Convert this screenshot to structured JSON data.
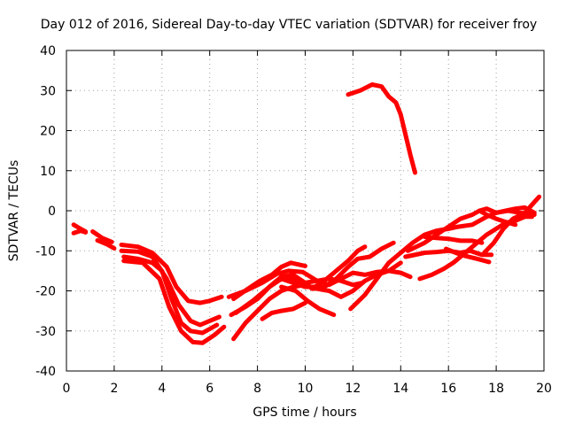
{
  "chart_data": {
    "type": "line",
    "title": "Day 012 of 2016, Sidereal Day-to-day VTEC variation (SDTVAR) for receiver froy",
    "xlabel": "GPS time / hours",
    "ylabel": "SDTVAR / TECUs",
    "xlim": [
      0,
      20
    ],
    "ylim": [
      -40,
      40
    ],
    "xticks": [
      0,
      2,
      4,
      6,
      8,
      10,
      12,
      14,
      16,
      18,
      20
    ],
    "yticks": [
      -40,
      -30,
      -20,
      -10,
      0,
      10,
      20,
      30,
      40
    ],
    "grid": true,
    "color": "#ff0000",
    "series": [
      {
        "name": "arc-1",
        "points": [
          [
            0.3,
            -3.5
          ],
          [
            0.5,
            -4.2
          ],
          [
            0.8,
            -5.2
          ]
        ]
      },
      {
        "name": "arc-2",
        "points": [
          [
            0.3,
            -5.6
          ],
          [
            0.6,
            -5.0
          ],
          [
            0.8,
            -5.4
          ]
        ]
      },
      {
        "name": "arc-3",
        "points": [
          [
            1.1,
            -5.2
          ],
          [
            1.5,
            -6.8
          ],
          [
            1.9,
            -7.8
          ]
        ]
      },
      {
        "name": "arc-4",
        "points": [
          [
            1.3,
            -7.4
          ],
          [
            1.7,
            -8.4
          ],
          [
            2.0,
            -9.4
          ]
        ]
      },
      {
        "name": "arc-5",
        "points": [
          [
            2.3,
            -8.5
          ],
          [
            3.0,
            -9.0
          ],
          [
            3.6,
            -10.5
          ],
          [
            4.2,
            -14.0
          ],
          [
            4.6,
            -19.0
          ],
          [
            5.1,
            -22.5
          ],
          [
            5.6,
            -23.0
          ],
          [
            6.0,
            -22.5
          ],
          [
            6.5,
            -21.5
          ]
        ]
      },
      {
        "name": "arc-6",
        "points": [
          [
            2.3,
            -10.0
          ],
          [
            3.0,
            -10.2
          ],
          [
            3.6,
            -11.5
          ],
          [
            4.2,
            -17.0
          ],
          [
            4.7,
            -23.5
          ],
          [
            5.2,
            -27.5
          ],
          [
            5.6,
            -28.5
          ],
          [
            6.0,
            -27.5
          ],
          [
            6.4,
            -26.5
          ]
        ]
      },
      {
        "name": "arc-7",
        "points": [
          [
            2.4,
            -11.5
          ],
          [
            3.0,
            -12.0
          ],
          [
            3.6,
            -13.0
          ],
          [
            4.0,
            -15.0
          ],
          [
            4.4,
            -22.0
          ],
          [
            4.8,
            -28.0
          ],
          [
            5.2,
            -30.0
          ],
          [
            5.7,
            -30.5
          ],
          [
            6.3,
            -28.5
          ]
        ]
      },
      {
        "name": "arc-8",
        "points": [
          [
            2.4,
            -12.5
          ],
          [
            3.2,
            -13.0
          ],
          [
            3.9,
            -17.0
          ],
          [
            4.3,
            -24.0
          ],
          [
            4.8,
            -30.0
          ],
          [
            5.3,
            -32.8
          ],
          [
            5.7,
            -33.0
          ],
          [
            6.2,
            -31.0
          ],
          [
            6.6,
            -29.0
          ]
        ]
      },
      {
        "name": "arc-9",
        "points": [
          [
            6.8,
            -21.5
          ],
          [
            7.5,
            -20.0
          ],
          [
            8.2,
            -18.0
          ],
          [
            8.8,
            -15.8
          ],
          [
            9.3,
            -15.0
          ],
          [
            9.9,
            -15.3
          ],
          [
            10.5,
            -17.5
          ],
          [
            11.0,
            -18.5
          ],
          [
            11.5,
            -17.0
          ],
          [
            12.0,
            -15.5
          ],
          [
            12.5,
            -16.0
          ],
          [
            13.0,
            -15.3
          ],
          [
            13.5,
            -15.0
          ],
          [
            14.0,
            -15.5
          ],
          [
            14.4,
            -16.5
          ]
        ]
      },
      {
        "name": "arc-10",
        "points": [
          [
            6.9,
            -26.0
          ],
          [
            7.5,
            -24.0
          ],
          [
            8.0,
            -22.0
          ],
          [
            8.5,
            -19.0
          ],
          [
            9.0,
            -16.5
          ],
          [
            9.5,
            -16.0
          ],
          [
            10.0,
            -18.0
          ],
          [
            10.5,
            -17.5
          ],
          [
            11.0,
            -17.0
          ],
          [
            11.5,
            -17.5
          ],
          [
            12.0,
            -18.5
          ],
          [
            12.4,
            -18.0
          ]
        ]
      },
      {
        "name": "arc-11",
        "points": [
          [
            7.1,
            -25.5
          ],
          [
            7.8,
            -22.5
          ],
          [
            8.3,
            -20.0
          ],
          [
            8.8,
            -17.5
          ],
          [
            9.3,
            -16.5
          ],
          [
            9.8,
            -17.5
          ],
          [
            10.3,
            -19.5
          ],
          [
            10.8,
            -19.0
          ],
          [
            11.3,
            -17.0
          ],
          [
            11.8,
            -14.0
          ],
          [
            12.2,
            -12.0
          ],
          [
            12.7,
            -11.5
          ],
          [
            13.2,
            -9.5
          ],
          [
            13.7,
            -8.0
          ]
        ]
      },
      {
        "name": "arc-12",
        "points": [
          [
            7.0,
            -32.0
          ],
          [
            7.5,
            -28.0
          ],
          [
            8.0,
            -25.0
          ],
          [
            8.5,
            -22.0
          ],
          [
            9.0,
            -20.0
          ],
          [
            9.5,
            -19.0
          ],
          [
            10.0,
            -18.5
          ],
          [
            10.5,
            -19.5
          ],
          [
            11.0,
            -20.0
          ],
          [
            11.5,
            -21.5
          ],
          [
            12.0,
            -20.0
          ],
          [
            12.5,
            -17.5
          ],
          [
            13.0,
            -16.0
          ],
          [
            13.5,
            -15.0
          ],
          [
            14.0,
            -13.0
          ]
        ]
      },
      {
        "name": "arc-13",
        "points": [
          [
            8.0,
            -22.0
          ],
          [
            8.5,
            -19.0
          ],
          [
            9.0,
            -17.0
          ],
          [
            9.5,
            -18.0
          ],
          [
            10.0,
            -19.0
          ],
          [
            10.4,
            -19.0
          ],
          [
            10.8,
            -17.5
          ],
          [
            11.3,
            -15.0
          ],
          [
            11.8,
            -12.5
          ],
          [
            12.2,
            -10.0
          ],
          [
            12.5,
            -9.0
          ]
        ]
      },
      {
        "name": "arc-14",
        "points": [
          [
            7.0,
            -22.0
          ],
          [
            7.6,
            -19.5
          ],
          [
            8.1,
            -17.5
          ],
          [
            8.6,
            -16.0
          ],
          [
            9.0,
            -14.0
          ],
          [
            9.4,
            -13.0
          ],
          [
            10.0,
            -13.8
          ]
        ]
      },
      {
        "name": "arc-15",
        "points": [
          [
            9.0,
            -19.0
          ],
          [
            9.6,
            -20.0
          ],
          [
            10.1,
            -22.5
          ],
          [
            10.6,
            -24.5
          ],
          [
            11.2,
            -26.0
          ]
        ]
      },
      {
        "name": "arc-16",
        "points": [
          [
            8.2,
            -27.0
          ],
          [
            8.6,
            -25.5
          ],
          [
            9.0,
            -25.0
          ],
          [
            9.5,
            -24.5
          ],
          [
            10.0,
            -23.0
          ]
        ]
      },
      {
        "name": "arc-17",
        "points": [
          [
            11.9,
            -24.5
          ],
          [
            12.5,
            -21.0
          ],
          [
            13.0,
            -17.0
          ],
          [
            13.5,
            -13.0
          ],
          [
            14.0,
            -10.5
          ],
          [
            14.5,
            -8.0
          ],
          [
            15.0,
            -6.0
          ],
          [
            15.5,
            -5.0
          ],
          [
            16.0,
            -4.5
          ],
          [
            16.4,
            -4.0
          ],
          [
            17.0,
            -3.5
          ],
          [
            17.6,
            -1.5
          ],
          [
            18.0,
            -0.5
          ],
          [
            18.5,
            0.0
          ],
          [
            19.0,
            -0.5
          ],
          [
            19.6,
            -1.0
          ]
        ]
      },
      {
        "name": "arc-18",
        "points": [
          [
            14.3,
            -10.0
          ],
          [
            15.0,
            -8.0
          ],
          [
            15.5,
            -6.0
          ],
          [
            16.0,
            -4.0
          ],
          [
            16.5,
            -2.0
          ],
          [
            17.0,
            -1.0
          ],
          [
            17.3,
            0.0
          ],
          [
            17.6,
            0.5
          ],
          [
            18.0,
            -0.5
          ],
          [
            18.4,
            0.0
          ],
          [
            18.8,
            0.5
          ],
          [
            19.2,
            0.8
          ],
          [
            19.6,
            -0.5
          ]
        ]
      },
      {
        "name": "arc-19",
        "points": [
          [
            14.2,
            -11.5
          ],
          [
            15.0,
            -10.5
          ],
          [
            15.5,
            -10.3
          ],
          [
            16.0,
            -10.0
          ],
          [
            16.5,
            -10.5
          ],
          [
            16.9,
            -10.0
          ],
          [
            17.4,
            -11.0
          ],
          [
            17.8,
            -11.0
          ]
        ]
      },
      {
        "name": "arc-20",
        "points": [
          [
            14.8,
            -17.0
          ],
          [
            15.3,
            -16.0
          ],
          [
            15.8,
            -14.5
          ],
          [
            16.2,
            -13.0
          ],
          [
            16.8,
            -10.0
          ],
          [
            17.2,
            -8.0
          ],
          [
            17.6,
            -6.0
          ],
          [
            18.0,
            -4.5
          ],
          [
            18.4,
            -3.0
          ],
          [
            18.8,
            -2.5
          ],
          [
            19.2,
            -1.5
          ],
          [
            19.5,
            -1.5
          ]
        ]
      },
      {
        "name": "arc-21",
        "points": [
          [
            15.0,
            -6.5
          ],
          [
            15.5,
            -6.8
          ],
          [
            16.0,
            -7.0
          ],
          [
            16.5,
            -7.5
          ],
          [
            17.0,
            -7.5
          ],
          [
            17.4,
            -8.0
          ]
        ]
      },
      {
        "name": "arc-22",
        "points": [
          [
            15.9,
            -9.5
          ],
          [
            16.3,
            -10.5
          ],
          [
            16.7,
            -11.3
          ],
          [
            17.2,
            -12.0
          ],
          [
            17.7,
            -12.8
          ]
        ]
      },
      {
        "name": "arc-23",
        "points": [
          [
            17.5,
            -10.5
          ],
          [
            17.9,
            -8.0
          ],
          [
            18.3,
            -4.5
          ],
          [
            18.7,
            -2.0
          ],
          [
            19.2,
            -0.5
          ],
          [
            19.5,
            1.5
          ],
          [
            19.8,
            3.5
          ]
        ]
      },
      {
        "name": "arc-24",
        "points": [
          [
            17.3,
            0.0
          ],
          [
            17.6,
            -1.0
          ],
          [
            18.0,
            -2.0
          ],
          [
            18.4,
            -2.8
          ],
          [
            18.8,
            -3.5
          ]
        ]
      },
      {
        "name": "arc-25",
        "points": [
          [
            11.8,
            29.0
          ],
          [
            12.3,
            30.0
          ],
          [
            12.8,
            31.5
          ],
          [
            13.2,
            31.0
          ],
          [
            13.5,
            28.5
          ],
          [
            13.8,
            27.0
          ],
          [
            14.0,
            24.0
          ],
          [
            14.2,
            19.0
          ],
          [
            14.4,
            14.0
          ],
          [
            14.6,
            9.5
          ]
        ]
      }
    ]
  }
}
